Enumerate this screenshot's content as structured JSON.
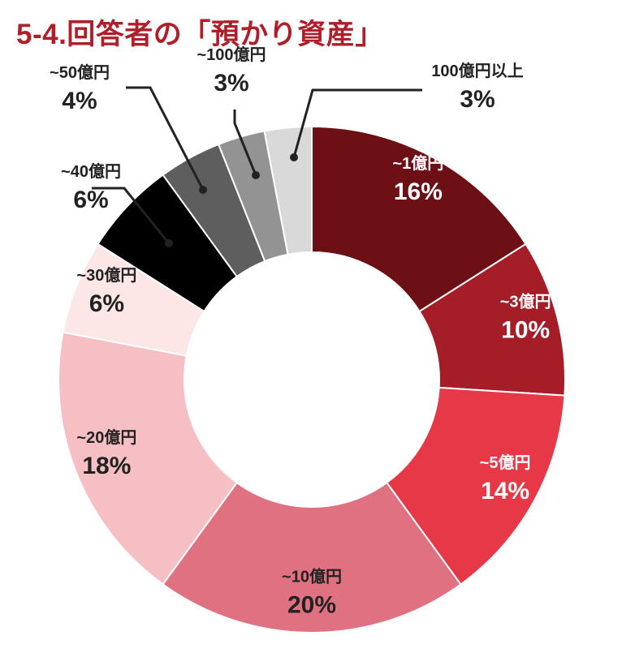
{
  "title": "5-4.回答者の「預かり資産」",
  "chart_data": {
    "type": "donut",
    "title": "5-4.回答者の「預かり資産」",
    "categories": [
      "~1億円",
      "~3億円",
      "~5億円",
      "~10億円",
      "~20億円",
      "~30億円",
      "~40億円",
      "~50億円",
      "~100億円",
      "100億円以上"
    ],
    "values": [
      16,
      10,
      14,
      20,
      18,
      6,
      6,
      4,
      3,
      3
    ],
    "value_labels": [
      "16%",
      "10%",
      "14%",
      "20%",
      "18%",
      "6%",
      "6%",
      "4%",
      "3%",
      "3%"
    ],
    "unit": "%",
    "colors": [
      "#6d1015",
      "#a51d27",
      "#e63846",
      "#e07180",
      "#f6bfc4",
      "#fde6e6",
      "#000000",
      "#5e5e5e",
      "#939393",
      "#d9d9d9"
    ],
    "label_colors": [
      "#ffffff",
      "#ffffff",
      "#ffffff",
      "#222222",
      "#222222",
      "#222222",
      "#222222",
      "#222222",
      "#222222",
      "#222222"
    ],
    "start_angle_deg": 0,
    "direction": "clockwise"
  }
}
